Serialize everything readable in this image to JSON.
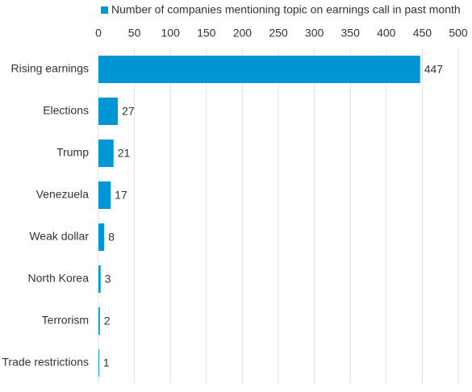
{
  "chart_data": {
    "type": "bar",
    "orientation": "horizontal",
    "categories": [
      "Rising earnings",
      "Elections",
      "Trump",
      "Venezuela",
      "Weak dollar",
      "North Korea",
      "Terrorism",
      "Trade restrictions"
    ],
    "series": [
      {
        "name": "Number of companies mentioning topic on earnings call in past month",
        "color": "#0096d6",
        "values": [
          447,
          27,
          21,
          17,
          8,
          3,
          2,
          1
        ]
      }
    ],
    "xlim": [
      0,
      500
    ],
    "xticks": [
      0,
      50,
      100,
      150,
      200,
      250,
      300,
      350,
      400,
      450,
      500
    ],
    "grid": true,
    "legend": "top"
  }
}
